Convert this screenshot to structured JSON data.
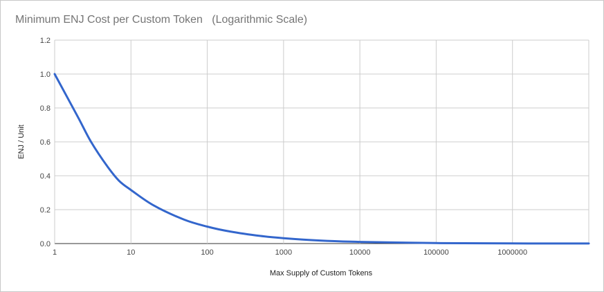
{
  "chart_data": {
    "type": "line",
    "title": "Minimum ENJ Cost per Custom Token   (Logarithmic Scale)",
    "xlabel": "Max Supply of Custom Tokens",
    "ylabel": "ENJ / Unit",
    "xscale": "log",
    "xlim": [
      1,
      10000000
    ],
    "ylim": [
      0,
      1.2
    ],
    "x_tick_labels": [
      "1",
      "10",
      "100",
      "1000",
      "10000",
      "100000",
      "1000000"
    ],
    "y_tick_labels": [
      "0.0",
      "0.2",
      "0.4",
      "0.6",
      "0.8",
      "1.0",
      "1.2"
    ],
    "grid": true,
    "legend": "none",
    "series": [
      {
        "color": "#3366cc",
        "x": [
          1,
          2,
          3,
          5,
          7,
          10,
          20,
          50,
          100,
          200,
          500,
          1000,
          3000,
          10000,
          100000,
          1000000,
          10000000
        ],
        "y": [
          1.0,
          0.75,
          0.6,
          0.45,
          0.37,
          0.316,
          0.224,
          0.141,
          0.1,
          0.071,
          0.045,
          0.032,
          0.018,
          0.01,
          0.003,
          0.001,
          0.0003
        ]
      }
    ]
  }
}
